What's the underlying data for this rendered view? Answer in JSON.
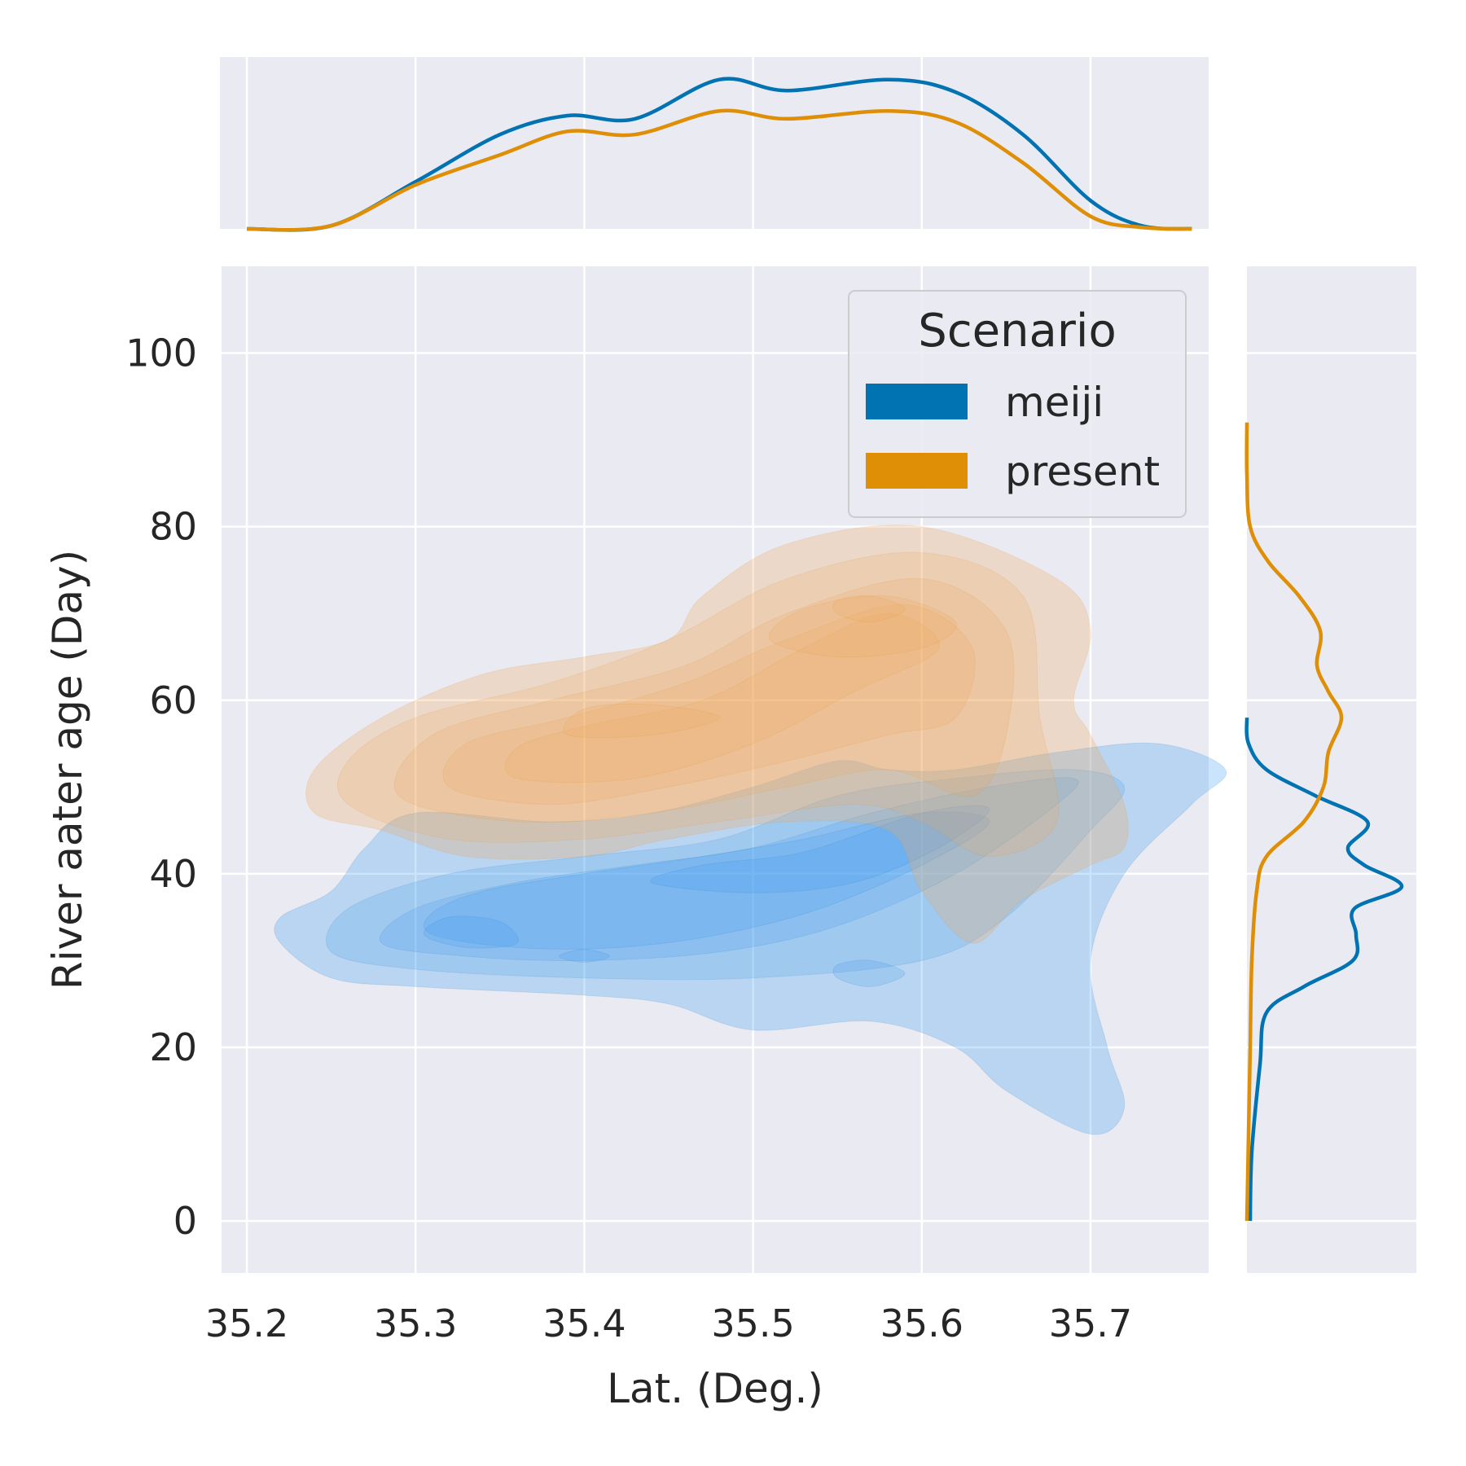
{
  "chart_data": {
    "type": "kde_jointplot",
    "xlabel": "Lat. (Deg.)",
    "ylabel": "River aater age (Day)",
    "xlim": [
      35.185,
      35.77
    ],
    "ylim": [
      -6,
      110
    ],
    "x_ticks": [
      35.2,
      35.3,
      35.4,
      35.5,
      35.6,
      35.7
    ],
    "x_tick_labels": [
      "35.2",
      "35.3",
      "35.4",
      "35.5",
      "35.6",
      "35.7"
    ],
    "y_ticks": [
      0,
      20,
      40,
      60,
      80,
      100
    ],
    "y_tick_labels": [
      "0",
      "20",
      "40",
      "60",
      "80",
      "100"
    ],
    "grid": true,
    "legend": {
      "title": "Scenario",
      "position": "top-right",
      "entries": [
        {
          "label": "meiji",
          "color": "#0173b2"
        },
        {
          "label": "present",
          "color": "#de8f05"
        }
      ]
    },
    "series": [
      {
        "name": "meiji",
        "color": "#0173b2",
        "fill_color": "#3d9df2",
        "levels": [
          [
            [
              35.22,
              32
            ],
            [
              35.25,
              28
            ],
            [
              35.3,
              27
            ],
            [
              35.4,
              26
            ],
            [
              35.45,
              25
            ],
            [
              35.5,
              22
            ],
            [
              35.57,
              23
            ],
            [
              35.62,
              20
            ],
            [
              35.65,
              15
            ],
            [
              35.7,
              10
            ],
            [
              35.72,
              13
            ],
            [
              35.71,
              20
            ],
            [
              35.7,
              30
            ],
            [
              35.72,
              40
            ],
            [
              35.76,
              48
            ],
            [
              35.78,
              52
            ],
            [
              35.74,
              55
            ],
            [
              35.68,
              54
            ],
            [
              35.62,
              52
            ],
            [
              35.58,
              52
            ],
            [
              35.55,
              53
            ],
            [
              35.5,
              50
            ],
            [
              35.44,
              47
            ],
            [
              35.38,
              46
            ],
            [
              35.3,
              47
            ],
            [
              35.27,
              43
            ],
            [
              35.25,
              38
            ],
            [
              35.22,
              35
            ]
          ],
          [
            [
              35.25,
              31
            ],
            [
              35.3,
              29
            ],
            [
              35.4,
              28
            ],
            [
              35.5,
              28
            ],
            [
              35.6,
              30
            ],
            [
              35.65,
              35
            ],
            [
              35.7,
              45
            ],
            [
              35.72,
              50
            ],
            [
              35.69,
              52
            ],
            [
              35.62,
              51
            ],
            [
              35.55,
              49
            ],
            [
              35.48,
              44
            ],
            [
              35.4,
              42
            ],
            [
              35.32,
              40
            ],
            [
              35.26,
              36
            ]
          ],
          [
            [
              35.28,
              32
            ],
            [
              35.33,
              30.5
            ],
            [
              35.4,
              30
            ],
            [
              35.48,
              31
            ],
            [
              35.55,
              34
            ],
            [
              35.62,
              40
            ],
            [
              35.68,
              48
            ],
            [
              35.69,
              51
            ],
            [
              35.64,
              50
            ],
            [
              35.57,
              47
            ],
            [
              35.5,
              43
            ],
            [
              35.43,
              41
            ],
            [
              35.36,
              39
            ],
            [
              35.3,
              36
            ]
          ],
          [
            [
              35.31,
              33
            ],
            [
              35.36,
              31.5
            ],
            [
              35.42,
              31.5
            ],
            [
              35.48,
              33
            ],
            [
              35.54,
              36
            ],
            [
              35.6,
              41
            ],
            [
              35.64,
              46
            ],
            [
              35.6,
              47
            ],
            [
              35.53,
              44
            ],
            [
              35.47,
              42
            ],
            [
              35.4,
              40
            ],
            [
              35.34,
              38
            ],
            [
              35.31,
              35.5
            ]
          ],
          [
            [
              35.44,
              39
            ],
            [
              35.5,
              37.8
            ],
            [
              35.56,
              39
            ],
            [
              35.61,
              43
            ],
            [
              35.64,
              47.5
            ],
            [
              35.6,
              47
            ],
            [
              35.53,
              42.5
            ],
            [
              35.47,
              41
            ]
          ],
          [
            [
              35.305,
              33
            ],
            [
              35.33,
              31.5
            ],
            [
              35.36,
              32
            ],
            [
              35.35,
              34.5
            ],
            [
              35.32,
              35
            ]
          ],
          [
            [
              35.385,
              30.5
            ],
            [
              35.4,
              29.8
            ],
            [
              35.415,
              30.5
            ],
            [
              35.4,
              31.3
            ]
          ],
          [
            [
              35.55,
              28
            ],
            [
              35.57,
              27
            ],
            [
              35.59,
              28.5
            ],
            [
              35.57,
              30
            ],
            [
              35.55,
              29.5
            ]
          ]
        ],
        "x_marginal": [
          [
            35.2,
            0
          ],
          [
            35.25,
            0.02
          ],
          [
            35.3,
            0.3
          ],
          [
            35.35,
            0.6
          ],
          [
            35.39,
            0.72
          ],
          [
            35.43,
            0.7
          ],
          [
            35.48,
            0.95
          ],
          [
            35.52,
            0.88
          ],
          [
            35.58,
            0.95
          ],
          [
            35.62,
            0.87
          ],
          [
            35.66,
            0.6
          ],
          [
            35.7,
            0.18
          ],
          [
            35.73,
            0.02
          ],
          [
            35.76,
            0
          ]
        ],
        "y_marginal": [
          [
            0,
            0.02
          ],
          [
            8,
            0.03
          ],
          [
            18,
            0.08
          ],
          [
            24,
            0.12
          ],
          [
            27,
            0.35
          ],
          [
            30,
            0.65
          ],
          [
            33,
            0.67
          ],
          [
            36,
            0.66
          ],
          [
            38.5,
            0.95
          ],
          [
            41,
            0.72
          ],
          [
            43,
            0.62
          ],
          [
            46,
            0.74
          ],
          [
            49,
            0.42
          ],
          [
            52,
            0.12
          ],
          [
            55,
            0.01
          ],
          [
            58,
            0
          ]
        ]
      },
      {
        "name": "present",
        "color": "#de8f05",
        "fill_color": "#f0a860",
        "levels": [
          [
            [
              35.24,
              47
            ],
            [
              35.28,
              45
            ],
            [
              35.33,
              42
            ],
            [
              35.4,
              42
            ],
            [
              35.45,
              44
            ],
            [
              35.52,
              46
            ],
            [
              35.58,
              45
            ],
            [
              35.6,
              38
            ],
            [
              35.63,
              32
            ],
            [
              35.66,
              37
            ],
            [
              35.7,
              41
            ],
            [
              35.72,
              43
            ],
            [
              35.72,
              48
            ],
            [
              35.7,
              56
            ],
            [
              35.69,
              60
            ],
            [
              35.7,
              68
            ],
            [
              35.68,
              74
            ],
            [
              35.6,
              80
            ],
            [
              35.52,
              78
            ],
            [
              35.47,
              72
            ],
            [
              35.45,
              67
            ],
            [
              35.4,
              65
            ],
            [
              35.34,
              63
            ],
            [
              35.28,
              58
            ],
            [
              35.24,
              52
            ]
          ],
          [
            [
              35.26,
              48
            ],
            [
              35.32,
              44
            ],
            [
              35.4,
              44
            ],
            [
              35.48,
              46
            ],
            [
              35.56,
              48
            ],
            [
              35.6,
              46
            ],
            [
              35.64,
              42
            ],
            [
              35.68,
              46
            ],
            [
              35.67,
              58
            ],
            [
              35.66,
              72
            ],
            [
              35.6,
              77
            ],
            [
              35.52,
              74
            ],
            [
              35.45,
              67
            ],
            [
              35.38,
              62
            ],
            [
              35.3,
              58
            ],
            [
              35.26,
              53
            ]
          ],
          [
            [
              35.29,
              49
            ],
            [
              35.36,
              46
            ],
            [
              35.44,
              47
            ],
            [
              35.52,
              50
            ],
            [
              35.58,
              52
            ],
            [
              35.63,
              49
            ],
            [
              35.65,
              56
            ],
            [
              35.65,
              68
            ],
            [
              35.6,
              74
            ],
            [
              35.52,
              70
            ],
            [
              35.46,
              64
            ],
            [
              35.38,
              60
            ],
            [
              35.31,
              56
            ]
          ],
          [
            [
              35.32,
              50
            ],
            [
              35.38,
              48
            ],
            [
              35.45,
              50
            ],
            [
              35.52,
              53
            ],
            [
              35.58,
              56
            ],
            [
              35.62,
              58
            ],
            [
              35.63,
              66
            ],
            [
              35.59,
              71
            ],
            [
              35.52,
              67
            ],
            [
              35.46,
              62
            ],
            [
              35.39,
              58
            ],
            [
              35.33,
              55
            ]
          ],
          [
            [
              35.36,
              51
            ],
            [
              35.43,
              51
            ],
            [
              35.5,
              55
            ],
            [
              35.56,
              61
            ],
            [
              35.61,
              66
            ],
            [
              35.58,
              70
            ],
            [
              35.53,
              66
            ],
            [
              35.47,
              60
            ],
            [
              35.4,
              57
            ],
            [
              35.36,
              54.5
            ]
          ],
          [
            [
              35.39,
              56
            ],
            [
              35.44,
              56
            ],
            [
              35.48,
              58
            ],
            [
              35.44,
              59.5
            ],
            [
              35.4,
              59
            ]
          ],
          [
            [
              35.51,
              67
            ],
            [
              35.55,
              65
            ],
            [
              35.6,
              66
            ],
            [
              35.62,
              69
            ],
            [
              35.58,
              72
            ],
            [
              35.53,
              70.5
            ]
          ],
          [
            [
              35.55,
              70
            ],
            [
              35.57,
              69
            ],
            [
              35.59,
              70.5
            ],
            [
              35.57,
              72
            ],
            [
              35.55,
              71.5
            ]
          ]
        ],
        "x_marginal": [
          [
            35.2,
            0
          ],
          [
            35.25,
            0.02
          ],
          [
            35.3,
            0.28
          ],
          [
            35.35,
            0.47
          ],
          [
            35.39,
            0.62
          ],
          [
            35.43,
            0.6
          ],
          [
            35.48,
            0.75
          ],
          [
            35.52,
            0.7
          ],
          [
            35.58,
            0.75
          ],
          [
            35.62,
            0.68
          ],
          [
            35.66,
            0.42
          ],
          [
            35.7,
            0.08
          ],
          [
            35.73,
            0.01
          ],
          [
            35.76,
            0
          ]
        ],
        "y_marginal": [
          [
            0,
            0
          ],
          [
            10,
            0.01
          ],
          [
            20,
            0.02
          ],
          [
            30,
            0.03
          ],
          [
            38,
            0.06
          ],
          [
            42,
            0.12
          ],
          [
            46,
            0.35
          ],
          [
            50,
            0.47
          ],
          [
            54,
            0.5
          ],
          [
            58,
            0.58
          ],
          [
            61,
            0.5
          ],
          [
            64,
            0.43
          ],
          [
            68,
            0.45
          ],
          [
            72,
            0.32
          ],
          [
            76,
            0.13
          ],
          [
            80,
            0.02
          ],
          [
            86,
            0
          ],
          [
            92,
            0
          ]
        ]
      }
    ]
  }
}
